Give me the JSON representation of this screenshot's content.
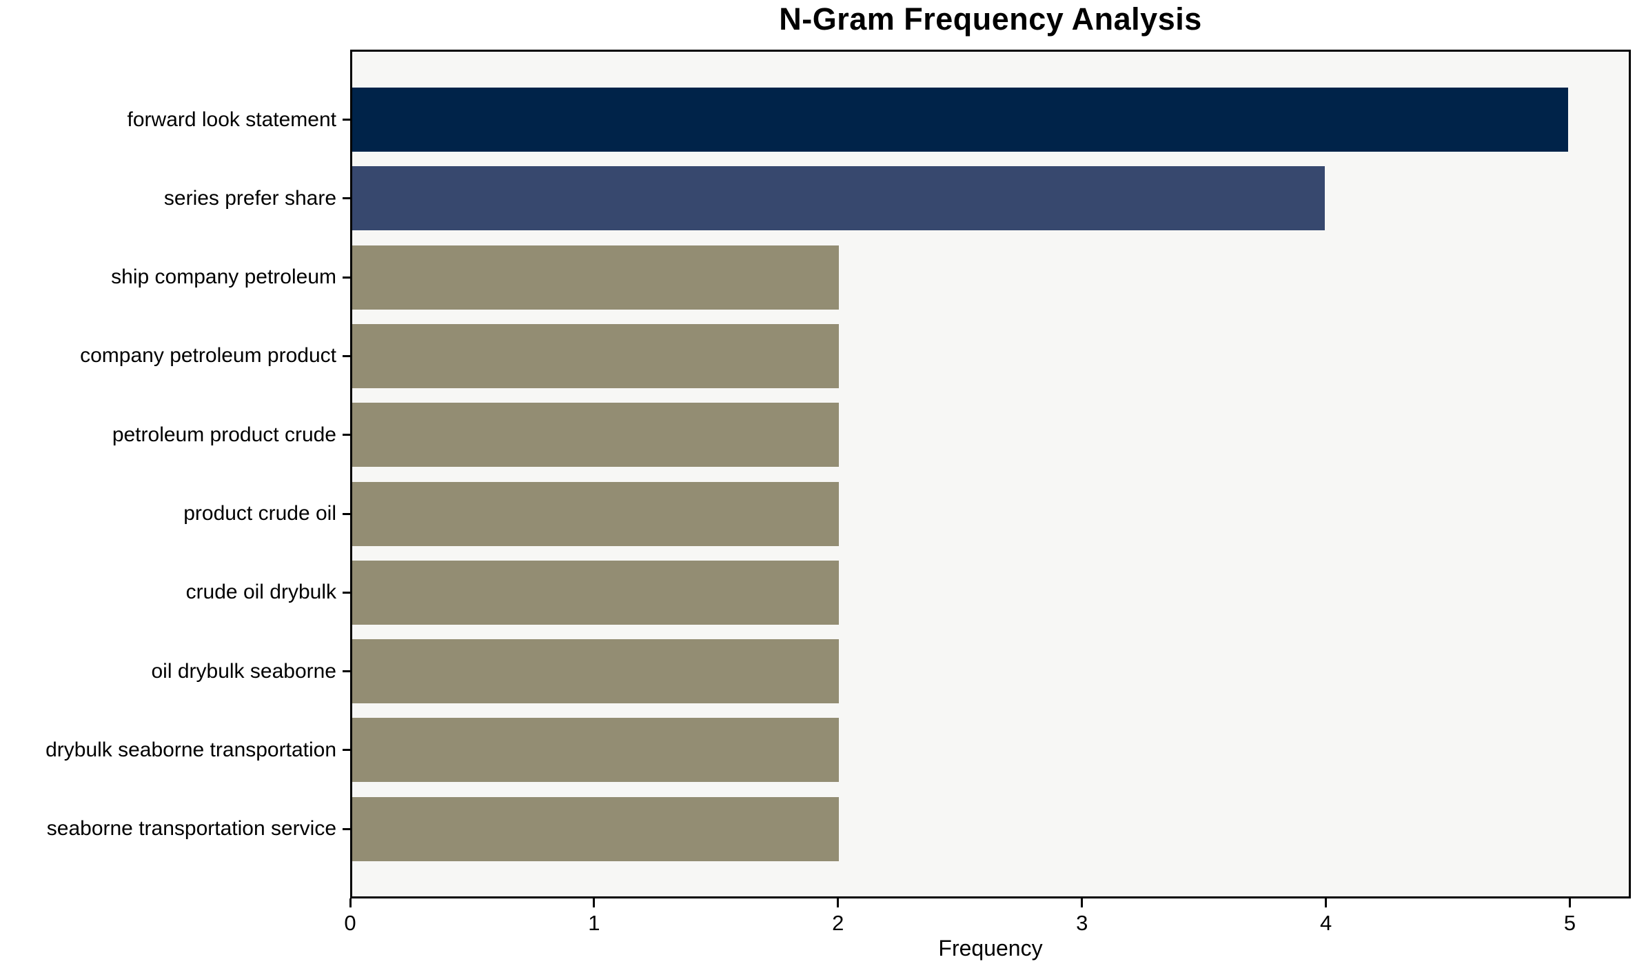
{
  "chart_data": {
    "type": "bar",
    "orientation": "horizontal",
    "title": "N-Gram Frequency Analysis",
    "xlabel": "Frequency",
    "ylabel": "",
    "categories": [
      "forward look statement",
      "series prefer share",
      "ship company petroleum",
      "company petroleum product",
      "petroleum product crude",
      "product crude oil",
      "crude oil drybulk",
      "oil drybulk seaborne",
      "drybulk seaborne transportation",
      "seaborne transportation service"
    ],
    "values": [
      5,
      4,
      2,
      2,
      2,
      2,
      2,
      2,
      2,
      2
    ],
    "x_ticks": [
      0,
      1,
      2,
      3,
      4,
      5
    ],
    "xlim": [
      0,
      5.25
    ],
    "grid": false,
    "legend": false,
    "bar_colors": [
      "#002349",
      "#37486E",
      "#938D73",
      "#938D73",
      "#938D73",
      "#938D73",
      "#938D73",
      "#938D73",
      "#938D73",
      "#938D73"
    ],
    "plot_background": "#F7F7F5",
    "figure_background": "#FFFFFF",
    "spine_color": "#000000",
    "text_color": "#000000"
  }
}
